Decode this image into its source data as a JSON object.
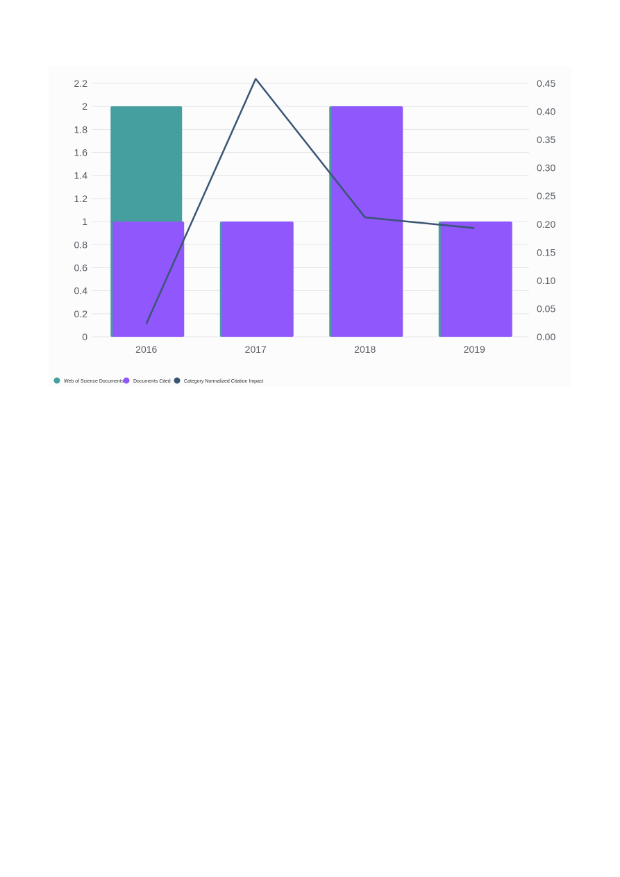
{
  "chart_data": {
    "type": "bar",
    "categories": [
      "2016",
      "2017",
      "2018",
      "2019"
    ],
    "series": [
      {
        "name": "Web of Science Documents",
        "kind": "bar",
        "axis": "left",
        "color": "#469f9f",
        "values": [
          2,
          1,
          2,
          1
        ]
      },
      {
        "name": "Documents Cited",
        "kind": "bar",
        "axis": "left",
        "color": "#8f57fc",
        "values": [
          1,
          1,
          2,
          1
        ]
      },
      {
        "name": "Category Normalized Citation Impact",
        "kind": "line",
        "axis": "right",
        "color": "#3a5574",
        "values": [
          0.023,
          0.458,
          0.212,
          0.193
        ]
      }
    ],
    "y_left": {
      "ticks": [
        "0",
        "0.2",
        "0.4",
        "0.6",
        "0.8",
        "1",
        "1.2",
        "1.4",
        "1.6",
        "1.8",
        "2",
        "2.2"
      ],
      "ylim": [
        0,
        2.2
      ]
    },
    "y_right": {
      "ticks": [
        "0.00",
        "0.05",
        "0.10",
        "0.15",
        "0.20",
        "0.25",
        "0.30",
        "0.35",
        "0.40",
        "0.45"
      ],
      "ylim": [
        0,
        0.45
      ]
    },
    "grid": true,
    "legend_position": "bottom-left"
  }
}
